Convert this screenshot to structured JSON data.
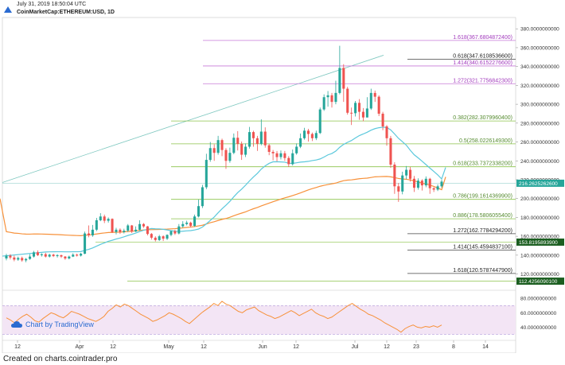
{
  "header": {
    "date": "July 31, 2019 18:50:04 UTC",
    "symbol": "CoinMarketCap:ETHEREUM:USD, 1D"
  },
  "footer": "Created on charts.cointrader.pro",
  "attribution": "Chart by TradingView",
  "colors": {
    "up": "#26a69a",
    "down": "#ef5350",
    "ma_fast": "#5bc8dc",
    "ma_slow": "#f7913a",
    "fib_ext": "#c77ad8",
    "fib_retr": "#8bc34a",
    "rsi": "#f7913a",
    "price_tag": "#26a69a",
    "support_tag": "#1b5e20"
  },
  "chart_data": {
    "type": "candlestick",
    "x_axis_labels": [
      "12",
      "Apr",
      "12",
      "May",
      "12",
      "Jun",
      "12",
      "Jul",
      "12",
      "23",
      "8",
      "14"
    ],
    "y_axis_labels": [
      "380.0000000000",
      "360.0000000000",
      "340.0000000000",
      "320.0000000000",
      "300.0000000000",
      "280.0000000000",
      "260.0000000000",
      "240.0000000000",
      "220.0000000000",
      "200.0000000000",
      "180.0000000000",
      "160.0000000000",
      "140.0000000000",
      "120.0000000000"
    ],
    "ylim": [
      107,
      392
    ],
    "current_price_label": "216.2625262600",
    "fib_levels": [
      {
        "label": "1.618(367.6804872400)",
        "value": 367.68,
        "kind": "ext"
      },
      {
        "label": "0.618(347.6108536600)",
        "value": 347.61,
        "kind": "dark"
      },
      {
        "label": "1.414(340.6152276600)",
        "value": 340.62,
        "kind": "ext"
      },
      {
        "label": "1.272(321.7756842300)",
        "value": 321.78,
        "kind": "ext"
      },
      {
        "label": "0.382(282.3079960400)",
        "value": 282.31,
        "kind": "retr"
      },
      {
        "label": "0.5(258.0226149300)",
        "value": 258.02,
        "kind": "retr"
      },
      {
        "label": "0.618(233.7372338200)",
        "value": 233.74,
        "kind": "retr"
      },
      {
        "label": "0.786(199.1614369900)",
        "value": 199.16,
        "kind": "retr"
      },
      {
        "label": "0.886(178.5806055400)",
        "value": 178.58,
        "kind": "retr"
      },
      {
        "label": "1.272(162.7784294200)",
        "value": 162.78,
        "kind": "dark"
      },
      {
        "label": "1.414(145.4594837100)",
        "value": 145.46,
        "kind": "dark"
      },
      {
        "label": "1.618(120.5787447900)",
        "value": 120.58,
        "kind": "dark"
      }
    ],
    "support_tags": [
      {
        "label": "153.8195893900",
        "value": 153.82
      },
      {
        "label": "112.4256090100",
        "value": 112.43
      }
    ],
    "rsi": {
      "labels": [
        "80.0000000000",
        "60.0000000000",
        "40.0000000000"
      ],
      "upper": 70,
      "lower": 30,
      "values": [
        53,
        50,
        46,
        51,
        55,
        58,
        54,
        49,
        47,
        52,
        56,
        60,
        58,
        55,
        53,
        57,
        62,
        60,
        58,
        55,
        52,
        50,
        48,
        51,
        55,
        62,
        66,
        71,
        68,
        72,
        70,
        66,
        62,
        58,
        55,
        52,
        48,
        50,
        53,
        56,
        60,
        58,
        55,
        52,
        48,
        45,
        50,
        55,
        60,
        64,
        68,
        73,
        70,
        76,
        72,
        70,
        66,
        62,
        60,
        64,
        66,
        68,
        63,
        60,
        57,
        55,
        52,
        54,
        57,
        60,
        63,
        60,
        56,
        59,
        62,
        65,
        60,
        57,
        55,
        52,
        54,
        58,
        62,
        66,
        70,
        73,
        69,
        65,
        62,
        58,
        56,
        53,
        50,
        46,
        43,
        40,
        37,
        33,
        38,
        41,
        43,
        40,
        39,
        41,
        40,
        42,
        40,
        43
      ]
    },
    "candles": [
      {
        "o": 136.5,
        "c": 139.5,
        "h": 141.5,
        "l": 134.5
      },
      {
        "o": 139.5,
        "c": 137.5,
        "h": 141.0,
        "l": 135.5
      },
      {
        "o": 137.5,
        "c": 135.3,
        "h": 139.5,
        "l": 133.5
      },
      {
        "o": 135.3,
        "c": 137.0,
        "h": 138.5,
        "l": 134.0
      },
      {
        "o": 137.0,
        "c": 134.5,
        "h": 138.5,
        "l": 133.0
      },
      {
        "o": 134.5,
        "c": 136.0,
        "h": 137.0,
        "l": 132.5
      },
      {
        "o": 136.0,
        "c": 138.5,
        "h": 141.0,
        "l": 135.0
      },
      {
        "o": 138.5,
        "c": 143.0,
        "h": 144.5,
        "l": 137.5
      },
      {
        "o": 143.0,
        "c": 140.0,
        "h": 145.0,
        "l": 139.0
      },
      {
        "o": 140.0,
        "c": 141.0,
        "h": 142.0,
        "l": 138.5
      },
      {
        "o": 141.0,
        "c": 138.5,
        "h": 142.5,
        "l": 137.5
      },
      {
        "o": 138.5,
        "c": 140.5,
        "h": 141.5,
        "l": 137.5
      },
      {
        "o": 140.5,
        "c": 139.0,
        "h": 141.5,
        "l": 138.0
      },
      {
        "o": 139.0,
        "c": 140.0,
        "h": 141.0,
        "l": 137.5
      },
      {
        "o": 140.0,
        "c": 138.5,
        "h": 140.5,
        "l": 137.0
      },
      {
        "o": 138.5,
        "c": 136.5,
        "h": 139.0,
        "l": 135.0
      },
      {
        "o": 136.5,
        "c": 138.5,
        "h": 139.5,
        "l": 135.5
      },
      {
        "o": 138.5,
        "c": 140.5,
        "h": 142.0,
        "l": 138.0
      },
      {
        "o": 140.5,
        "c": 139.5,
        "h": 141.5,
        "l": 138.5
      },
      {
        "o": 139.5,
        "c": 141.5,
        "h": 142.5,
        "l": 138.5
      },
      {
        "o": 141.5,
        "c": 163.0,
        "h": 165.0,
        "l": 141.0
      },
      {
        "o": 163.0,
        "c": 161.0,
        "h": 171.5,
        "l": 159.0
      },
      {
        "o": 161.0,
        "c": 167.0,
        "h": 172.0,
        "l": 159.5
      },
      {
        "o": 167.0,
        "c": 177.0,
        "h": 179.5,
        "l": 165.5
      },
      {
        "o": 177.0,
        "c": 181.0,
        "h": 184.5,
        "l": 176.0
      },
      {
        "o": 181.0,
        "c": 176.5,
        "h": 183.0,
        "l": 174.0
      },
      {
        "o": 176.5,
        "c": 178.5,
        "h": 180.0,
        "l": 174.5
      },
      {
        "o": 178.5,
        "c": 164.5,
        "h": 179.0,
        "l": 163.5
      },
      {
        "o": 164.5,
        "c": 167.0,
        "h": 169.0,
        "l": 162.0
      },
      {
        "o": 167.0,
        "c": 164.5,
        "h": 168.5,
        "l": 162.5
      },
      {
        "o": 164.5,
        "c": 166.0,
        "h": 168.0,
        "l": 163.0
      },
      {
        "o": 166.0,
        "c": 171.5,
        "h": 173.0,
        "l": 164.5
      },
      {
        "o": 171.5,
        "c": 165.0,
        "h": 172.0,
        "l": 163.5
      },
      {
        "o": 165.0,
        "c": 167.0,
        "h": 170.5,
        "l": 164.5
      },
      {
        "o": 167.0,
        "c": 173.0,
        "h": 177.0,
        "l": 166.0
      },
      {
        "o": 173.0,
        "c": 170.5,
        "h": 174.0,
        "l": 169.0
      },
      {
        "o": 170.5,
        "c": 162.5,
        "h": 171.0,
        "l": 161.0
      },
      {
        "o": 162.5,
        "c": 158.5,
        "h": 163.5,
        "l": 156.5
      },
      {
        "o": 158.5,
        "c": 156.0,
        "h": 160.0,
        "l": 154.5
      },
      {
        "o": 156.0,
        "c": 160.0,
        "h": 161.5,
        "l": 155.0
      },
      {
        "o": 160.0,
        "c": 157.5,
        "h": 161.0,
        "l": 155.0
      },
      {
        "o": 157.5,
        "c": 161.5,
        "h": 162.0,
        "l": 156.0
      },
      {
        "o": 161.5,
        "c": 165.5,
        "h": 166.0,
        "l": 160.0
      },
      {
        "o": 165.5,
        "c": 163.0,
        "h": 167.0,
        "l": 161.5
      },
      {
        "o": 163.0,
        "c": 170.5,
        "h": 173.0,
        "l": 162.0
      },
      {
        "o": 170.5,
        "c": 173.0,
        "h": 176.0,
        "l": 169.0
      },
      {
        "o": 173.0,
        "c": 174.5,
        "h": 176.5,
        "l": 171.5
      },
      {
        "o": 174.5,
        "c": 171.0,
        "h": 175.5,
        "l": 169.5
      },
      {
        "o": 171.0,
        "c": 181.0,
        "h": 183.0,
        "l": 170.0
      },
      {
        "o": 181.0,
        "c": 192.0,
        "h": 199.0,
        "l": 180.0
      },
      {
        "o": 192.0,
        "c": 212.0,
        "h": 214.5,
        "l": 190.0
      },
      {
        "o": 212.0,
        "c": 241.0,
        "h": 247.5,
        "l": 210.0
      },
      {
        "o": 241.0,
        "c": 253.5,
        "h": 260.0,
        "l": 239.0
      },
      {
        "o": 253.5,
        "c": 248.5,
        "h": 257.5,
        "l": 240.0
      },
      {
        "o": 248.5,
        "c": 262.0,
        "h": 266.5,
        "l": 246.5
      },
      {
        "o": 262.0,
        "c": 251.5,
        "h": 263.5,
        "l": 245.0
      },
      {
        "o": 251.5,
        "c": 240.0,
        "h": 253.5,
        "l": 231.5
      },
      {
        "o": 240.0,
        "c": 248.5,
        "h": 254.0,
        "l": 238.0
      },
      {
        "o": 248.5,
        "c": 264.5,
        "h": 269.0,
        "l": 247.0
      },
      {
        "o": 264.5,
        "c": 258.0,
        "h": 271.5,
        "l": 251.0
      },
      {
        "o": 258.0,
        "c": 246.5,
        "h": 260.5,
        "l": 241.0
      },
      {
        "o": 246.5,
        "c": 255.0,
        "h": 258.5,
        "l": 244.0
      },
      {
        "o": 255.0,
        "c": 270.5,
        "h": 276.0,
        "l": 253.0
      },
      {
        "o": 270.5,
        "c": 264.0,
        "h": 272.0,
        "l": 255.0
      },
      {
        "o": 264.0,
        "c": 258.0,
        "h": 266.5,
        "l": 250.5
      },
      {
        "o": 258.0,
        "c": 271.0,
        "h": 284.0,
        "l": 256.5
      },
      {
        "o": 271.0,
        "c": 256.5,
        "h": 275.5,
        "l": 254.0
      },
      {
        "o": 256.5,
        "c": 249.5,
        "h": 258.0,
        "l": 246.0
      },
      {
        "o": 249.5,
        "c": 248.0,
        "h": 251.5,
        "l": 240.5
      },
      {
        "o": 248.0,
        "c": 244.0,
        "h": 250.5,
        "l": 239.5
      },
      {
        "o": 244.0,
        "c": 248.0,
        "h": 251.0,
        "l": 241.5
      },
      {
        "o": 248.0,
        "c": 243.0,
        "h": 250.5,
        "l": 240.0
      },
      {
        "o": 243.0,
        "c": 236.5,
        "h": 245.0,
        "l": 233.5
      },
      {
        "o": 236.5,
        "c": 248.0,
        "h": 252.0,
        "l": 235.0
      },
      {
        "o": 248.0,
        "c": 255.0,
        "h": 258.5,
        "l": 246.5
      },
      {
        "o": 255.0,
        "c": 264.0,
        "h": 269.0,
        "l": 253.5
      },
      {
        "o": 264.0,
        "c": 272.0,
        "h": 275.0,
        "l": 262.5
      },
      {
        "o": 272.0,
        "c": 268.5,
        "h": 274.0,
        "l": 260.5
      },
      {
        "o": 268.5,
        "c": 264.0,
        "h": 270.0,
        "l": 261.0
      },
      {
        "o": 264.0,
        "c": 269.5,
        "h": 272.0,
        "l": 262.0
      },
      {
        "o": 269.5,
        "c": 294.5,
        "h": 296.5,
        "l": 268.5
      },
      {
        "o": 294.5,
        "c": 307.5,
        "h": 310.5,
        "l": 293.0
      },
      {
        "o": 307.5,
        "c": 309.5,
        "h": 314.0,
        "l": 297.5
      },
      {
        "o": 309.5,
        "c": 302.5,
        "h": 312.0,
        "l": 296.5
      },
      {
        "o": 302.5,
        "c": 312.0,
        "h": 325.0,
        "l": 300.0
      },
      {
        "o": 312.0,
        "c": 338.5,
        "h": 362.0,
        "l": 310.5
      },
      {
        "o": 338.5,
        "c": 316.5,
        "h": 342.5,
        "l": 302.5
      },
      {
        "o": 316.5,
        "c": 291.0,
        "h": 318.5,
        "l": 289.0
      },
      {
        "o": 291.0,
        "c": 290.5,
        "h": 296.5,
        "l": 278.0
      },
      {
        "o": 290.5,
        "c": 301.5,
        "h": 303.5,
        "l": 287.0
      },
      {
        "o": 301.5,
        "c": 292.0,
        "h": 305.5,
        "l": 283.5
      },
      {
        "o": 292.0,
        "c": 286.0,
        "h": 296.0,
        "l": 282.0
      },
      {
        "o": 286.0,
        "c": 295.5,
        "h": 307.5,
        "l": 286.0
      },
      {
        "o": 295.5,
        "c": 312.0,
        "h": 316.5,
        "l": 294.0
      },
      {
        "o": 312.0,
        "c": 308.0,
        "h": 314.5,
        "l": 302.5
      },
      {
        "o": 308.0,
        "c": 290.0,
        "h": 309.5,
        "l": 287.5
      },
      {
        "o": 290.0,
        "c": 276.5,
        "h": 292.0,
        "l": 272.5
      },
      {
        "o": 276.5,
        "c": 264.0,
        "h": 278.0,
        "l": 256.0
      },
      {
        "o": 264.0,
        "c": 236.0,
        "h": 266.5,
        "l": 232.5
      },
      {
        "o": 236.0,
        "c": 213.0,
        "h": 238.5,
        "l": 205.0
      },
      {
        "o": 213.0,
        "c": 207.5,
        "h": 216.5,
        "l": 196.5
      },
      {
        "o": 207.5,
        "c": 224.5,
        "h": 228.5,
        "l": 204.5
      },
      {
        "o": 224.5,
        "c": 230.5,
        "h": 234.5,
        "l": 220.5
      },
      {
        "o": 230.5,
        "c": 221.0,
        "h": 233.5,
        "l": 218.0
      },
      {
        "o": 221.0,
        "c": 211.5,
        "h": 224.0,
        "l": 207.0
      },
      {
        "o": 211.5,
        "c": 219.0,
        "h": 221.5,
        "l": 209.5
      },
      {
        "o": 219.0,
        "c": 214.0,
        "h": 220.5,
        "l": 208.5
      },
      {
        "o": 214.0,
        "c": 221.0,
        "h": 223.5,
        "l": 212.0
      },
      {
        "o": 221.0,
        "c": 211.0,
        "h": 222.0,
        "l": 205.0
      },
      {
        "o": 211.0,
        "c": 209.5,
        "h": 212.0,
        "l": 207.0
      },
      {
        "o": 209.5,
        "c": 213.0,
        "h": 215.0,
        "l": 208.0
      },
      {
        "o": 213.0,
        "c": 218.0,
        "h": 220.0,
        "l": 211.5
      }
    ]
  }
}
